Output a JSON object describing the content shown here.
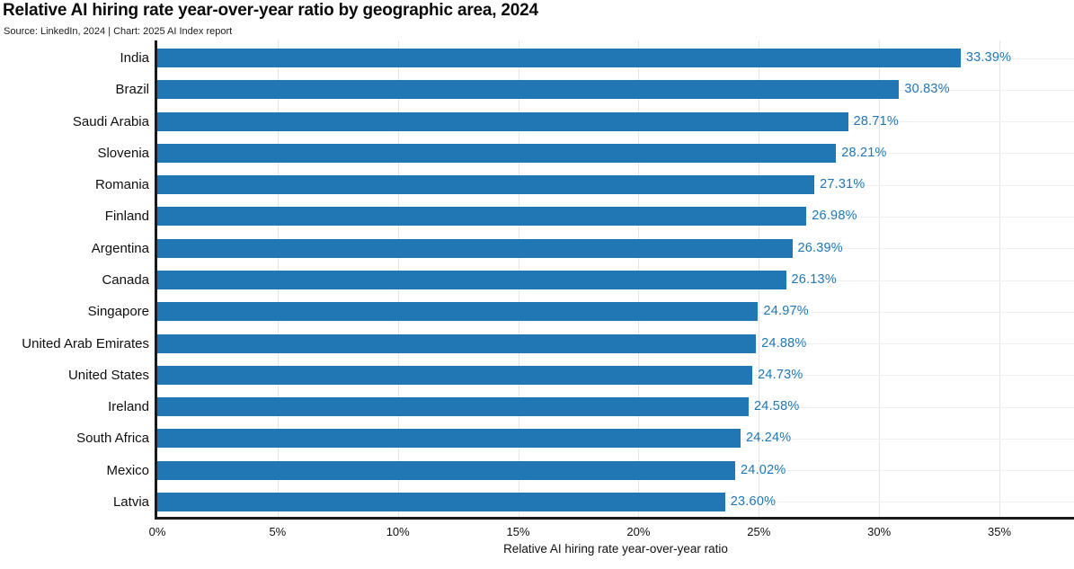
{
  "header": {
    "title": "Relative AI hiring rate year-over-year ratio by geographic area, 2024",
    "source": "Source: LinkedIn, 2024 | Chart: 2025 AI Index report"
  },
  "chart_data": {
    "type": "bar",
    "orientation": "horizontal",
    "title": "Relative AI hiring rate year-over-year ratio by geographic area, 2024",
    "source": "Source: LinkedIn, 2024 | Chart: 2025 AI Index report",
    "categories": [
      "India",
      "Brazil",
      "Saudi Arabia",
      "Slovenia",
      "Romania",
      "Finland",
      "Argentina",
      "Canada",
      "Singapore",
      "United Arab Emirates",
      "United States",
      "Ireland",
      "South Africa",
      "Mexico",
      "Latvia"
    ],
    "values": [
      33.39,
      30.83,
      28.71,
      28.21,
      27.31,
      26.98,
      26.39,
      26.13,
      24.97,
      24.88,
      24.73,
      24.58,
      24.24,
      24.02,
      23.6
    ],
    "value_labels": [
      "33.39%",
      "30.83%",
      "28.71%",
      "28.21%",
      "27.31%",
      "26.98%",
      "26.39%",
      "26.13%",
      "24.97%",
      "24.88%",
      "24.73%",
      "24.58%",
      "24.24%",
      "24.02%",
      "23.60%"
    ],
    "xlabel": "Relative AI hiring rate year-over-year ratio",
    "x_ticks": [
      "0%",
      "5%",
      "10%",
      "15%",
      "20%",
      "25%",
      "30%",
      "35%"
    ],
    "x_tick_values": [
      0,
      5,
      10,
      15,
      20,
      25,
      30,
      35
    ],
    "xlim": [
      0,
      38.1
    ],
    "grid": true,
    "legend": "none",
    "bar_color": "#2077b4",
    "value_label_color": "#2077b4",
    "axis_color": "#1a1a1a"
  }
}
